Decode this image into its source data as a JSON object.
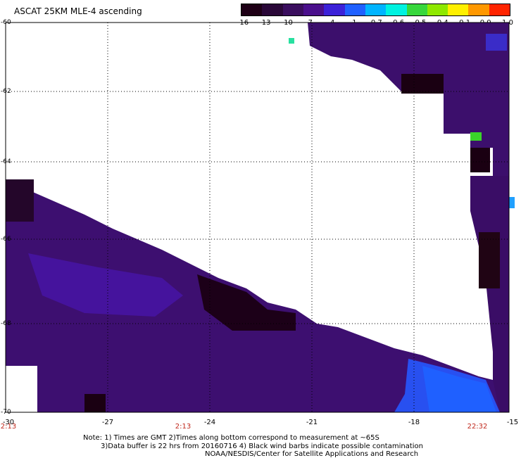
{
  "title": "ASCAT 25KM MLE-4 ascending",
  "colorbar": {
    "ticks": [
      "-16",
      "-13",
      "-10",
      "-7",
      "-4",
      "-1",
      "-0.7",
      "-0.6",
      "-0.5",
      "-0.4",
      "-0.1",
      "0.0",
      "1.0"
    ],
    "colors": [
      "#1e0016",
      "#2a0838",
      "#3a0e5e",
      "#4a0f8c",
      "#3b21d8",
      "#1f60ff",
      "#00b4ff",
      "#00f2e0",
      "#37d73c",
      "#8ee800",
      "#fff000",
      "#ff9800",
      "#ff2400"
    ]
  },
  "map": {
    "lat_labels": [
      "-60",
      "-62",
      "-64",
      "-66",
      "-68",
      "-70"
    ],
    "lon_labels": [
      "-30",
      "-27",
      "-24",
      "-21",
      "-18",
      "-15"
    ],
    "time_labels": [
      "2:13",
      "2:13",
      "22:32"
    ]
  },
  "notes": {
    "line1": "Note: 1) Times are GMT 2)Times along bottom correspond to measurement at ~65S",
    "line2": "3)Data buffer is 22 hrs from 20160716 4) Black wind barbs indicate possible contamination",
    "line3": "NOAA/NESDIS/Center for Satellite Applications and Research"
  }
}
